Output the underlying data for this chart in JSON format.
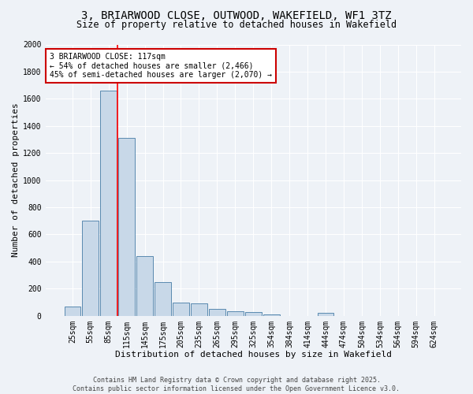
{
  "title_line1": "3, BRIARWOOD CLOSE, OUTWOOD, WAKEFIELD, WF1 3TZ",
  "title_line2": "Size of property relative to detached houses in Wakefield",
  "xlabel": "Distribution of detached houses by size in Wakefield",
  "ylabel": "Number of detached properties",
  "bar_color": "#c8d8e8",
  "bar_edge_color": "#5a8ab0",
  "categories": [
    "25sqm",
    "55sqm",
    "85sqm",
    "115sqm",
    "145sqm",
    "175sqm",
    "205sqm",
    "235sqm",
    "265sqm",
    "295sqm",
    "325sqm",
    "354sqm",
    "384sqm",
    "414sqm",
    "444sqm",
    "474sqm",
    "504sqm",
    "534sqm",
    "564sqm",
    "594sqm",
    "624sqm"
  ],
  "values": [
    70,
    700,
    1660,
    1310,
    440,
    250,
    95,
    90,
    50,
    35,
    30,
    10,
    0,
    0,
    20,
    0,
    0,
    0,
    0,
    0,
    0
  ],
  "ylim": [
    0,
    2000
  ],
  "yticks": [
    0,
    200,
    400,
    600,
    800,
    1000,
    1200,
    1400,
    1600,
    1800,
    2000
  ],
  "red_line_index": 3,
  "annotation_text": "3 BRIARWOOD CLOSE: 117sqm\n← 54% of detached houses are smaller (2,466)\n45% of semi-detached houses are larger (2,070) →",
  "annotation_box_color": "#ffffff",
  "annotation_border_color": "#cc0000",
  "footer_line1": "Contains HM Land Registry data © Crown copyright and database right 2025.",
  "footer_line2": "Contains public sector information licensed under the Open Government Licence v3.0.",
  "background_color": "#eef2f7",
  "grid_color": "#ffffff",
  "title_fontsize": 10,
  "subtitle_fontsize": 8.5,
  "axis_label_fontsize": 8,
  "tick_fontsize": 7,
  "annotation_fontsize": 7,
  "footer_fontsize": 6
}
